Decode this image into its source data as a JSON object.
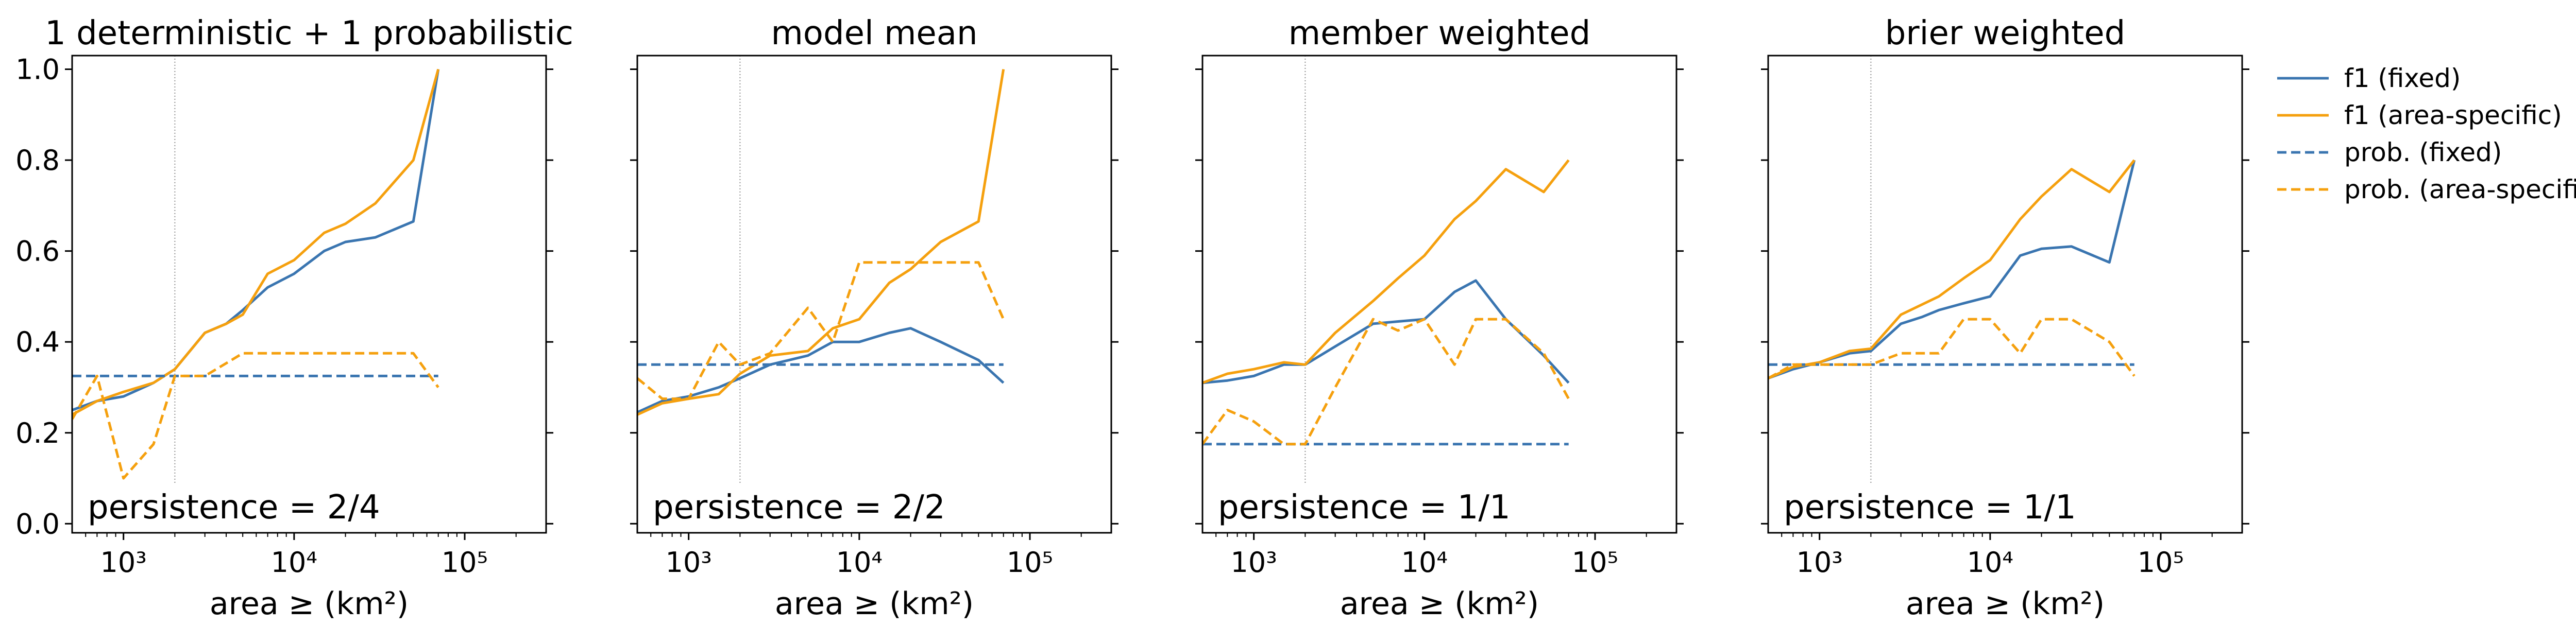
{
  "legend": {
    "position": "right, outside plot area",
    "entries": [
      {
        "label": "f1 (fixed)",
        "color": "#3a75b0",
        "dash": "solid"
      },
      {
        "label": "f1 (area-specific)",
        "color": "#f5a00e",
        "dash": "solid"
      },
      {
        "label": "prob. (fixed)",
        "color": "#3a75b0",
        "dash": "dashed"
      },
      {
        "label": "prob. (area-specific)",
        "color": "#f5a00e",
        "dash": "dashed"
      }
    ]
  },
  "chart_data": [
    {
      "type": "line",
      "title": "1 deterministic + 1 probabilistic",
      "annotation": "persistence = 2/4",
      "xlabel": "area ≥ (km²)",
      "ylabel": "",
      "xscale": "log",
      "xlim": [
        500,
        300000
      ],
      "ylim": [
        -0.02,
        1.03
      ],
      "xticks": [
        1000,
        10000,
        100000
      ],
      "xtick_labels": [
        "10³",
        "10⁴",
        "10⁵"
      ],
      "yticks": [
        0.0,
        0.2,
        0.4,
        0.6,
        0.8,
        1.0
      ],
      "ytick_labels": [
        "0.0",
        "0.2",
        "0.4",
        "0.6",
        "0.8",
        "1.0"
      ],
      "ytick_labels_visible": true,
      "reference_vline_x": 2000,
      "series": [
        {
          "name": "f1 (fixed)",
          "color": "#3a75b0",
          "dash": "solid",
          "x": [
            500,
            700,
            1000,
            1500,
            2000,
            3000,
            4000,
            5000,
            7000,
            10000,
            15000,
            20000,
            30000,
            50000,
            70000
          ],
          "y": [
            0.25,
            0.27,
            0.28,
            0.31,
            0.34,
            0.42,
            0.44,
            0.47,
            0.52,
            0.55,
            0.6,
            0.62,
            0.63,
            0.665,
            1.0
          ]
        },
        {
          "name": "f1 (area-specific)",
          "color": "#f5a00e",
          "dash": "solid",
          "x": [
            500,
            700,
            1000,
            1500,
            2000,
            3000,
            4000,
            5000,
            7000,
            10000,
            15000,
            20000,
            30000,
            50000,
            70000
          ],
          "y": [
            0.24,
            0.27,
            0.29,
            0.31,
            0.34,
            0.42,
            0.44,
            0.46,
            0.55,
            0.58,
            0.64,
            0.66,
            0.705,
            0.8,
            1.0
          ]
        },
        {
          "name": "prob. (fixed)",
          "color": "#3a75b0",
          "dash": "dashed",
          "x": [
            500,
            70000
          ],
          "y": [
            0.325,
            0.325
          ]
        },
        {
          "name": "prob. (area-specific)",
          "color": "#f5a00e",
          "dash": "dashed",
          "x": [
            500,
            700,
            1000,
            1500,
            2000,
            3000,
            5000,
            7000,
            10000,
            15000,
            20000,
            30000,
            50000,
            70000
          ],
          "y": [
            0.23,
            0.325,
            0.1,
            0.175,
            0.325,
            0.325,
            0.375,
            0.375,
            0.375,
            0.375,
            0.375,
            0.375,
            0.375,
            0.3
          ]
        }
      ]
    },
    {
      "type": "line",
      "title": "model mean",
      "annotation": "persistence = 2/2",
      "xlabel": "area ≥ (km²)",
      "ylabel": "",
      "xscale": "log",
      "xlim": [
        500,
        300000
      ],
      "ylim": [
        -0.02,
        1.03
      ],
      "xticks": [
        1000,
        10000,
        100000
      ],
      "xtick_labels": [
        "10³",
        "10⁴",
        "10⁵"
      ],
      "yticks": [
        0.0,
        0.2,
        0.4,
        0.6,
        0.8,
        1.0
      ],
      "ytick_labels": [
        "0.0",
        "0.2",
        "0.4",
        "0.6",
        "0.8",
        "1.0"
      ],
      "ytick_labels_visible": false,
      "reference_vline_x": 2000,
      "series": [
        {
          "name": "f1 (fixed)",
          "color": "#3a75b0",
          "dash": "solid",
          "x": [
            500,
            700,
            1000,
            1500,
            2000,
            3000,
            5000,
            7000,
            10000,
            15000,
            20000,
            30000,
            50000,
            70000
          ],
          "y": [
            0.245,
            0.27,
            0.28,
            0.3,
            0.32,
            0.35,
            0.37,
            0.4,
            0.4,
            0.42,
            0.43,
            0.4,
            0.36,
            0.31
          ]
        },
        {
          "name": "f1 (area-specific)",
          "color": "#f5a00e",
          "dash": "solid",
          "x": [
            500,
            700,
            1000,
            1500,
            2000,
            3000,
            5000,
            7000,
            10000,
            15000,
            20000,
            30000,
            50000,
            70000
          ],
          "y": [
            0.24,
            0.265,
            0.275,
            0.285,
            0.33,
            0.37,
            0.38,
            0.43,
            0.45,
            0.53,
            0.56,
            0.62,
            0.665,
            1.0
          ]
        },
        {
          "name": "prob. (fixed)",
          "color": "#3a75b0",
          "dash": "dashed",
          "x": [
            500,
            70000
          ],
          "y": [
            0.35,
            0.35
          ]
        },
        {
          "name": "prob. (area-specific)",
          "color": "#f5a00e",
          "dash": "dashed",
          "x": [
            500,
            700,
            1000,
            1500,
            2000,
            3000,
            5000,
            7000,
            10000,
            15000,
            20000,
            30000,
            50000,
            70000
          ],
          "y": [
            0.32,
            0.275,
            0.275,
            0.4,
            0.35,
            0.375,
            0.475,
            0.4,
            0.575,
            0.575,
            0.575,
            0.575,
            0.575,
            0.45
          ]
        }
      ]
    },
    {
      "type": "line",
      "title": "member weighted",
      "annotation": "persistence = 1/1",
      "xlabel": "area ≥ (km²)",
      "ylabel": "",
      "xscale": "log",
      "xlim": [
        500,
        300000
      ],
      "ylim": [
        -0.02,
        1.03
      ],
      "xticks": [
        1000,
        10000,
        100000
      ],
      "xtick_labels": [
        "10³",
        "10⁴",
        "10⁵"
      ],
      "yticks": [
        0.0,
        0.2,
        0.4,
        0.6,
        0.8,
        1.0
      ],
      "ytick_labels": [
        "0.0",
        "0.2",
        "0.4",
        "0.6",
        "0.8",
        "1.0"
      ],
      "ytick_labels_visible": false,
      "reference_vline_x": 2000,
      "series": [
        {
          "name": "f1 (fixed)",
          "color": "#3a75b0",
          "dash": "solid",
          "x": [
            500,
            700,
            1000,
            1500,
            2000,
            3000,
            5000,
            7000,
            10000,
            15000,
            20000,
            30000,
            50000,
            70000
          ],
          "y": [
            0.31,
            0.315,
            0.325,
            0.35,
            0.35,
            0.39,
            0.44,
            0.445,
            0.45,
            0.51,
            0.535,
            0.45,
            0.37,
            0.31
          ]
        },
        {
          "name": "f1 (area-specific)",
          "color": "#f5a00e",
          "dash": "solid",
          "x": [
            500,
            700,
            1000,
            1500,
            2000,
            3000,
            5000,
            7000,
            10000,
            15000,
            20000,
            30000,
            50000,
            70000
          ],
          "y": [
            0.31,
            0.33,
            0.34,
            0.355,
            0.35,
            0.42,
            0.49,
            0.54,
            0.59,
            0.67,
            0.71,
            0.78,
            0.73,
            0.8
          ]
        },
        {
          "name": "prob. (fixed)",
          "color": "#3a75b0",
          "dash": "dashed",
          "x": [
            500,
            70000
          ],
          "y": [
            0.175,
            0.175
          ]
        },
        {
          "name": "prob. (area-specific)",
          "color": "#f5a00e",
          "dash": "dashed",
          "x": [
            500,
            700,
            1000,
            1500,
            2000,
            3000,
            5000,
            7000,
            10000,
            15000,
            20000,
            30000,
            50000,
            70000
          ],
          "y": [
            0.175,
            0.25,
            0.225,
            0.175,
            0.175,
            0.3,
            0.45,
            0.425,
            0.45,
            0.35,
            0.45,
            0.45,
            0.375,
            0.275
          ]
        }
      ]
    },
    {
      "type": "line",
      "title": "brier weighted",
      "annotation": "persistence = 1/1",
      "xlabel": "area ≥ (km²)",
      "ylabel": "",
      "xscale": "log",
      "xlim": [
        500,
        300000
      ],
      "ylim": [
        -0.02,
        1.03
      ],
      "xticks": [
        1000,
        10000,
        100000
      ],
      "xtick_labels": [
        "10³",
        "10⁴",
        "10⁵"
      ],
      "yticks": [
        0.0,
        0.2,
        0.4,
        0.6,
        0.8,
        1.0
      ],
      "ytick_labels": [
        "0.0",
        "0.2",
        "0.4",
        "0.6",
        "0.8",
        "1.0"
      ],
      "ytick_labels_visible": false,
      "reference_vline_x": 2000,
      "series": [
        {
          "name": "f1 (fixed)",
          "color": "#3a75b0",
          "dash": "solid",
          "x": [
            500,
            700,
            1000,
            1500,
            2000,
            3000,
            4000,
            5000,
            7000,
            10000,
            15000,
            20000,
            30000,
            50000,
            70000
          ],
          "y": [
            0.32,
            0.34,
            0.355,
            0.375,
            0.38,
            0.44,
            0.455,
            0.47,
            0.485,
            0.5,
            0.59,
            0.605,
            0.61,
            0.575,
            0.8
          ]
        },
        {
          "name": "f1 (area-specific)",
          "color": "#f5a00e",
          "dash": "solid",
          "x": [
            500,
            700,
            1000,
            1500,
            2000,
            3000,
            5000,
            7000,
            10000,
            15000,
            20000,
            30000,
            50000,
            70000
          ],
          "y": [
            0.32,
            0.345,
            0.355,
            0.38,
            0.385,
            0.46,
            0.5,
            0.54,
            0.58,
            0.67,
            0.72,
            0.78,
            0.73,
            0.8
          ]
        },
        {
          "name": "prob. (fixed)",
          "color": "#3a75b0",
          "dash": "dashed",
          "x": [
            500,
            70000
          ],
          "y": [
            0.35,
            0.35
          ]
        },
        {
          "name": "prob. (area-specific)",
          "color": "#f5a00e",
          "dash": "dashed",
          "x": [
            500,
            700,
            1000,
            1500,
            2000,
            3000,
            5000,
            7000,
            10000,
            15000,
            20000,
            30000,
            50000,
            70000
          ],
          "y": [
            0.32,
            0.35,
            0.35,
            0.35,
            0.35,
            0.375,
            0.375,
            0.45,
            0.45,
            0.375,
            0.45,
            0.45,
            0.4,
            0.325
          ]
        }
      ]
    }
  ]
}
